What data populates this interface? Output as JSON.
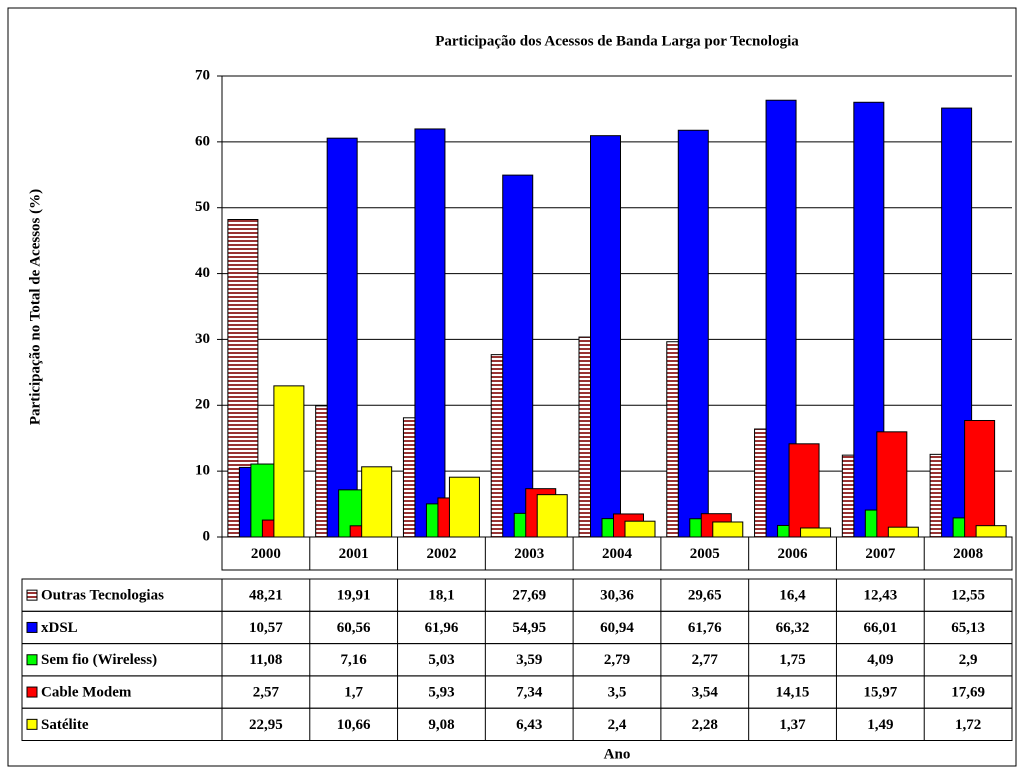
{
  "chart_data": {
    "type": "bar",
    "title": "Participação dos Acessos de Banda Larga por Tecnologia",
    "ylabel": "Participação no Total de Acessos (%)",
    "xlabel": "Ano",
    "categories": [
      "2000",
      "2001",
      "2002",
      "2003",
      "2004",
      "2005",
      "2006",
      "2007",
      "2008"
    ],
    "ylim": [
      0,
      70
    ],
    "yticks": [
      0,
      10,
      20,
      30,
      40,
      50,
      60,
      70
    ],
    "grid": true,
    "data_table": true,
    "series": [
      {
        "name": "Outras Tecnologias",
        "color": "#993333",
        "pattern": "horizontal-stripes",
        "values": [
          48.21,
          19.91,
          18.1,
          27.69,
          30.36,
          29.65,
          16.4,
          12.43,
          12.55
        ],
        "value_labels": [
          "48,21",
          "19,91",
          "18,1",
          "27,69",
          "30,36",
          "29,65",
          "16,4",
          "12,43",
          "12,55"
        ]
      },
      {
        "name": "xDSL",
        "color": "#0000ff",
        "values": [
          10.57,
          60.56,
          61.96,
          54.95,
          60.94,
          61.76,
          66.32,
          66.01,
          65.13
        ],
        "value_labels": [
          "10,57",
          "60,56",
          "61,96",
          "54,95",
          "60,94",
          "61,76",
          "66,32",
          "66,01",
          "65,13"
        ]
      },
      {
        "name": "Sem fio (Wireless)",
        "color": "#00ff00",
        "values": [
          11.08,
          7.16,
          5.03,
          3.59,
          2.79,
          2.77,
          1.75,
          4.09,
          2.9
        ],
        "value_labels": [
          "11,08",
          "7,16",
          "5,03",
          "3,59",
          "2,79",
          "2,77",
          "1,75",
          "4,09",
          "2,9"
        ]
      },
      {
        "name": "Cable Modem",
        "color": "#ff0000",
        "values": [
          2.57,
          1.7,
          5.93,
          7.34,
          3.5,
          3.54,
          14.15,
          15.97,
          17.69
        ],
        "value_labels": [
          "2,57",
          "1,7",
          "5,93",
          "7,34",
          "3,5",
          "3,54",
          "14,15",
          "15,97",
          "17,69"
        ]
      },
      {
        "name": "Satélite",
        "color": "#ffff00",
        "values": [
          22.95,
          10.66,
          9.08,
          6.43,
          2.4,
          2.28,
          1.37,
          1.49,
          1.72
        ],
        "value_labels": [
          "22,95",
          "10,66",
          "9,08",
          "6,43",
          "2,4",
          "2,28",
          "1,37",
          "1,49",
          "1,72"
        ]
      }
    ]
  }
}
